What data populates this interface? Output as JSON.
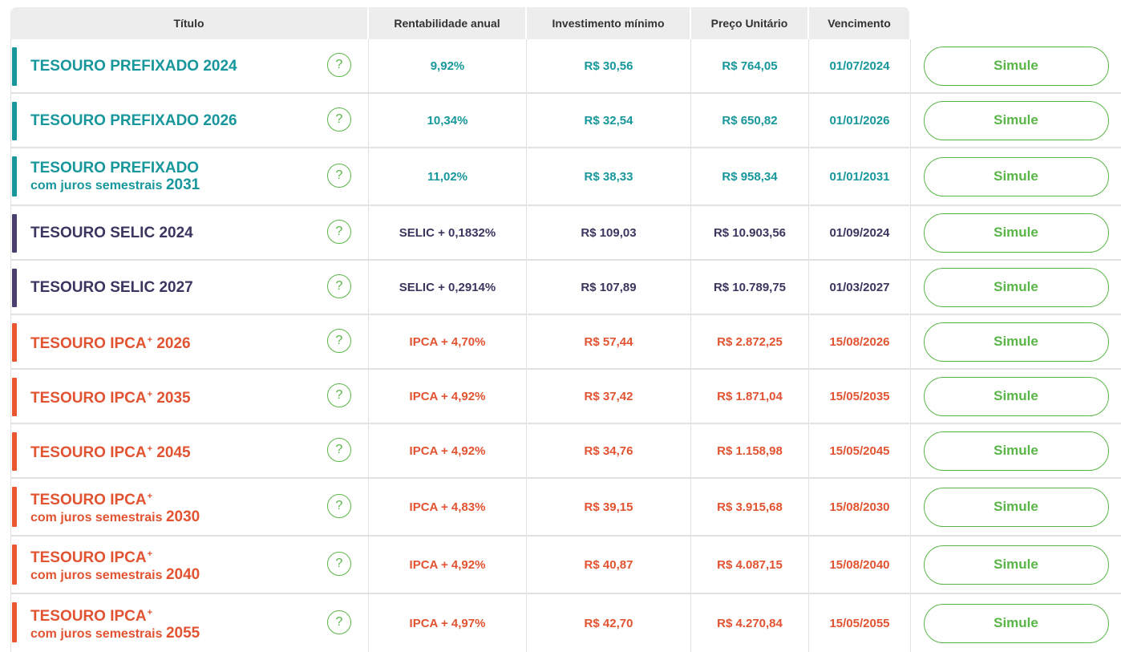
{
  "header": {
    "titulo": "Título",
    "rentabilidade": "Rentabilidade anual",
    "investimento": "Investimento mínimo",
    "preco": "Preço Unitário",
    "vencimento": "Vencimento"
  },
  "help_symbol": "?",
  "rows": [
    {
      "name": "TESOURO PREFIXADO",
      "plus": "",
      "sub": "",
      "year": "2024",
      "rent": "9,92%",
      "inv": "R$ 30,56",
      "price": "R$ 764,05",
      "venc": "01/07/2024",
      "button": "Simule"
    },
    {
      "name": "TESOURO PREFIXADO",
      "plus": "",
      "sub": "",
      "year": "2026",
      "rent": "10,34%",
      "inv": "R$ 32,54",
      "price": "R$ 650,82",
      "venc": "01/01/2026",
      "button": "Simule"
    },
    {
      "name": "TESOURO PREFIXADO",
      "plus": "",
      "sub": "com juros semestrais",
      "year": "2031",
      "rent": "11,02%",
      "inv": "R$ 38,33",
      "price": "R$ 958,34",
      "venc": "01/01/2031",
      "button": "Simule"
    },
    {
      "name": "TESOURO SELIC",
      "plus": "",
      "sub": "",
      "year": "2024",
      "rent": "SELIC + 0,1832%",
      "inv": "R$ 109,03",
      "price": "R$ 10.903,56",
      "venc": "01/09/2024",
      "button": "Simule"
    },
    {
      "name": "TESOURO SELIC",
      "plus": "",
      "sub": "",
      "year": "2027",
      "rent": "SELIC + 0,2914%",
      "inv": "R$ 107,89",
      "price": "R$ 10.789,75",
      "venc": "01/03/2027",
      "button": "Simule"
    },
    {
      "name": "TESOURO IPCA",
      "plus": "+",
      "sub": "",
      "year": "2026",
      "rent": "IPCA + 4,70%",
      "inv": "R$ 57,44",
      "price": "R$ 2.872,25",
      "venc": "15/08/2026",
      "button": "Simule"
    },
    {
      "name": "TESOURO IPCA",
      "plus": "+",
      "sub": "",
      "year": "2035",
      "rent": "IPCA + 4,92%",
      "inv": "R$ 37,42",
      "price": "R$ 1.871,04",
      "venc": "15/05/2035",
      "button": "Simule"
    },
    {
      "name": "TESOURO IPCA",
      "plus": "+",
      "sub": "",
      "year": "2045",
      "rent": "IPCA + 4,92%",
      "inv": "R$ 34,76",
      "price": "R$ 1.158,98",
      "venc": "15/05/2045",
      "button": "Simule"
    },
    {
      "name": "TESOURO IPCA",
      "plus": "+",
      "sub": "com juros semestrais",
      "year": "2030",
      "rent": "IPCA + 4,83%",
      "inv": "R$ 39,15",
      "price": "R$ 3.915,68",
      "venc": "15/08/2030",
      "button": "Simule"
    },
    {
      "name": "TESOURO IPCA",
      "plus": "+",
      "sub": "com juros semestrais",
      "year": "2040",
      "rent": "IPCA + 4,92%",
      "inv": "R$ 40,87",
      "price": "R$ 4.087,15",
      "venc": "15/08/2040",
      "button": "Simule"
    },
    {
      "name": "TESOURO IPCA",
      "plus": "+",
      "sub": "com juros semestrais",
      "year": "2055",
      "rent": "IPCA + 4,97%",
      "inv": "R$ 42,70",
      "price": "R$ 4.270,84",
      "venc": "15/05/2055",
      "button": "Simule"
    }
  ],
  "colors": {
    "prefixado": "#17979b",
    "selic": "#3b3560",
    "ipca": "#e25331",
    "accent_green": "#5ab548",
    "header_bg": "#ededed"
  }
}
